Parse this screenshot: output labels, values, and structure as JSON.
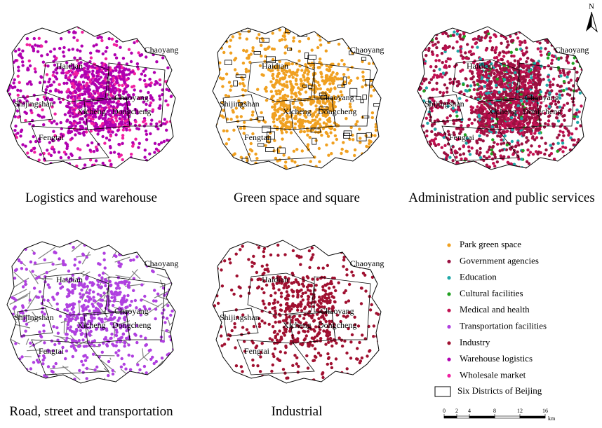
{
  "north": "N",
  "panels": [
    {
      "title": "Logistics and warehouse",
      "labels": [
        "Chaoyang",
        "Haidian",
        "Shijingshan",
        "Xicheng",
        "Dongcheng",
        "Chaoyang",
        "Fengtai"
      ]
    },
    {
      "title": "Green space and square",
      "labels": [
        "Chaoyang",
        "Haidian",
        "Shijingshan",
        "Xicheng",
        "Dongcheng",
        "Chaoyang",
        "Fengtai"
      ]
    },
    {
      "title": "Administration and public services",
      "labels": [
        "Chaoyang",
        "Haidian",
        "Shijingshan",
        "Xicheng",
        "Dongcheng",
        "Chaoyang",
        "Fengtai"
      ]
    },
    {
      "title": "Road, street and transportation",
      "labels": [
        "Chaoyang",
        "Haidian",
        "Shijingshan",
        "Xicheng",
        "Dongcheng",
        "Chaoyang",
        "Fengtai"
      ]
    },
    {
      "title": "Industrial",
      "labels": [
        "Chaoyang",
        "Haidian",
        "Shijingshan",
        "Xicheng",
        "Dongcheng",
        "Chaoyang",
        "Fengtai"
      ]
    }
  ],
  "legend": [
    {
      "name": "Park green space",
      "color": "#f0a020"
    },
    {
      "name": "Government agencies",
      "color": "#9a1040"
    },
    {
      "name": "Education",
      "color": "#20a8a8"
    },
    {
      "name": "Cultural facilities",
      "color": "#20a020"
    },
    {
      "name": "Medical and health",
      "color": "#c01050"
    },
    {
      "name": "Transportation facilities",
      "color": "#b040e0"
    },
    {
      "name": "Industry",
      "color": "#a01030"
    },
    {
      "name": "Warehouse logistics",
      "color": "#b000b0"
    },
    {
      "name": "Wholesale market",
      "color": "#f020a0"
    }
  ],
  "boundary_label": "Six Districts of Beijing",
  "scale": {
    "ticks": [
      0,
      2,
      4,
      8,
      12,
      16
    ],
    "unit": "km"
  }
}
